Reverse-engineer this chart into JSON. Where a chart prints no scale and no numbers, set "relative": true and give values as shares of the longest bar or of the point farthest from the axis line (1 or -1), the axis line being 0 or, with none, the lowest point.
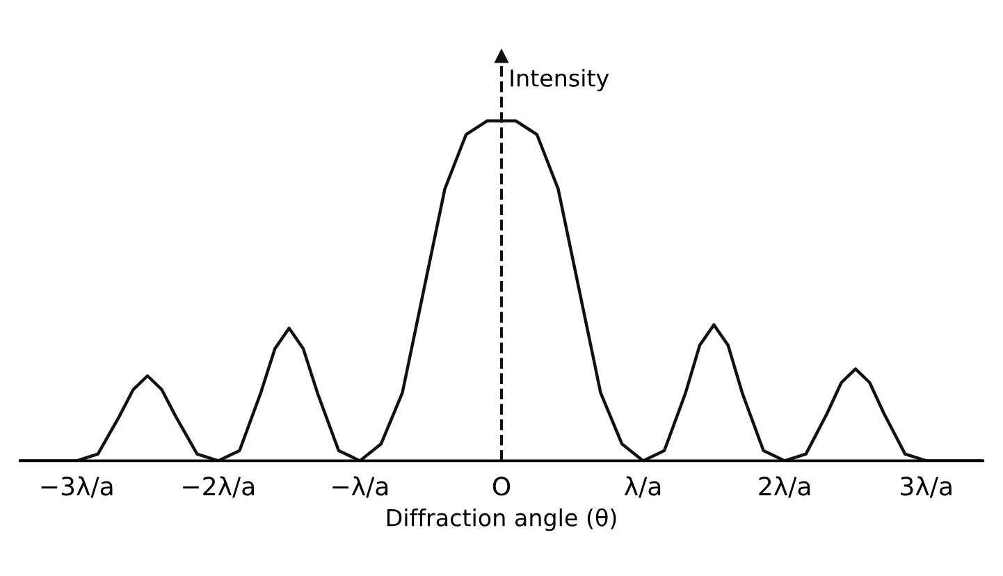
{
  "chart_data": {
    "type": "line",
    "relative": true,
    "xlabel": "Diffraction angle (θ)",
    "ylabel": "Intensity",
    "xlim": [
      -3.4,
      3.4
    ],
    "xticks": [
      {
        "value": -3,
        "label": "−3λ/a"
      },
      {
        "value": -2,
        "label": "−2λ/a"
      },
      {
        "value": -1,
        "label": "−λ/a"
      },
      {
        "value": 0,
        "label": "O"
      },
      {
        "value": 1,
        "label": "λ/a"
      },
      {
        "value": 2,
        "label": "2λ/a"
      },
      {
        "value": 3,
        "label": "3λ/a"
      }
    ],
    "ref_lines": [
      {
        "axis": "x",
        "value": 0,
        "color": "#111111",
        "line_style": "dashed"
      }
    ],
    "grid": false,
    "legend": false,
    "marker": "none",
    "line_style": "solid",
    "series": [
      {
        "color": "#111111",
        "x": [
          -3.4,
          -3,
          -2.85,
          -2.7,
          -2.6,
          -2.5,
          -2.4,
          -2.3,
          -2.15,
          -2,
          -1.85,
          -1.7,
          -1.6,
          -1.5,
          -1.4,
          -1.3,
          -1.15,
          -1,
          -0.85,
          -0.7,
          -0.55,
          -0.4,
          -0.25,
          -0.1,
          0,
          0.1,
          0.25,
          0.4,
          0.55,
          0.7,
          0.85,
          1,
          1.15,
          1.3,
          1.4,
          1.5,
          1.6,
          1.7,
          1.85,
          2,
          2.15,
          2.3,
          2.4,
          2.5,
          2.6,
          2.7,
          2.85,
          3,
          3.4
        ],
        "values": [
          0,
          0,
          0.02,
          0.13,
          0.21,
          0.25,
          0.21,
          0.13,
          0.02,
          0,
          0.03,
          0.2,
          0.33,
          0.39,
          0.33,
          0.2,
          0.03,
          0,
          0.05,
          0.2,
          0.5,
          0.8,
          0.96,
          1.0,
          1.0,
          1.0,
          0.96,
          0.8,
          0.5,
          0.2,
          0.05,
          0,
          0.03,
          0.2,
          0.34,
          0.4,
          0.34,
          0.2,
          0.03,
          0,
          0.02,
          0.14,
          0.23,
          0.27,
          0.23,
          0.14,
          0.02,
          0,
          0
        ]
      }
    ]
  }
}
